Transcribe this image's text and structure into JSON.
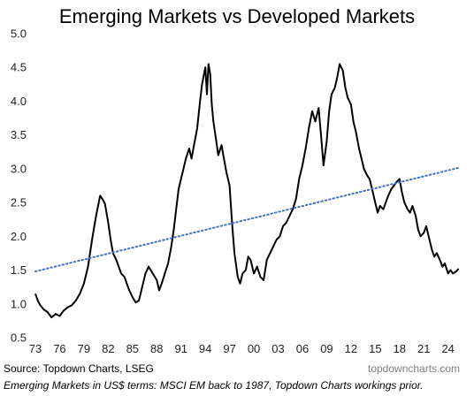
{
  "chart_data": {
    "type": "line",
    "title": "Emerging Markets vs Developed Markets",
    "xlabel": "",
    "ylabel": "",
    "ylim": [
      0.5,
      5.0
    ],
    "xlim": [
      1973,
      2026
    ],
    "yticks": [
      "0.5",
      "1.0",
      "1.5",
      "2.0",
      "2.5",
      "3.0",
      "3.5",
      "4.0",
      "4.5",
      "5.0"
    ],
    "xticks": [
      "73",
      "76",
      "79",
      "82",
      "85",
      "88",
      "91",
      "94",
      "97",
      "00",
      "03",
      "06",
      "09",
      "12",
      "15",
      "18",
      "21",
      "24"
    ],
    "grid": false,
    "legend": "none",
    "series": [
      {
        "color": "#000000",
        "style": "solid",
        "x": [
          1973.0,
          1973.3,
          1973.6,
          1974.0,
          1974.5,
          1975.0,
          1975.5,
          1976.0,
          1976.5,
          1977.0,
          1977.5,
          1978.0,
          1978.5,
          1979.0,
          1979.5,
          1980.0,
          1980.5,
          1981.0,
          1981.3,
          1981.6,
          1982.0,
          1982.3,
          1982.6,
          1983.0,
          1983.3,
          1983.6,
          1984.0,
          1984.3,
          1984.6,
          1985.0,
          1985.4,
          1985.8,
          1986.2,
          1986.6,
          1987.0,
          1987.5,
          1988.0,
          1988.3,
          1988.6,
          1989.0,
          1989.4,
          1989.8,
          1990.1,
          1990.4,
          1990.7,
          1991.0,
          1991.3,
          1991.6,
          1992.0,
          1992.3,
          1992.6,
          1993.0,
          1993.3,
          1993.6,
          1994.0,
          1994.2,
          1994.4,
          1994.6,
          1994.8,
          1995.0,
          1995.3,
          1995.6,
          1996.0,
          1996.3,
          1996.6,
          1997.0,
          1997.3,
          1997.6,
          1998.0,
          1998.3,
          1998.6,
          1999.0,
          1999.3,
          1999.6,
          2000.0,
          2000.4,
          2000.8,
          2001.2,
          2001.6,
          2002.0,
          2002.4,
          2002.8,
          2003.2,
          2003.6,
          2004.0,
          2004.4,
          2004.8,
          2005.2,
          2005.6,
          2006.0,
          2006.4,
          2006.8,
          2007.2,
          2007.6,
          2008.0,
          2008.3,
          2008.6,
          2009.0,
          2009.3,
          2009.6,
          2010.0,
          2010.3,
          2010.6,
          2011.0,
          2011.3,
          2011.6,
          2012.0,
          2012.3,
          2012.6,
          2013.0,
          2013.3,
          2013.6,
          2014.0,
          2014.3,
          2014.6,
          2015.0,
          2015.3,
          2015.6,
          2016.0,
          2016.3,
          2016.6,
          2017.0,
          2017.3,
          2017.6,
          2018.0,
          2018.3,
          2018.6,
          2019.0,
          2019.3,
          2019.6,
          2020.0,
          2020.3,
          2020.6,
          2021.0,
          2021.3,
          2021.6,
          2022.0,
          2022.3,
          2022.6,
          2023.0,
          2023.3,
          2023.6,
          2024.0,
          2024.3,
          2024.6,
          2025.0,
          2025.3
        ],
        "y": [
          1.15,
          1.05,
          0.98,
          0.92,
          0.88,
          0.8,
          0.85,
          0.82,
          0.9,
          0.95,
          0.98,
          1.05,
          1.15,
          1.3,
          1.55,
          1.95,
          2.3,
          2.6,
          2.55,
          2.48,
          2.2,
          1.95,
          1.75,
          1.65,
          1.55,
          1.45,
          1.4,
          1.3,
          1.2,
          1.1,
          1.02,
          1.05,
          1.25,
          1.45,
          1.55,
          1.45,
          1.35,
          1.2,
          1.3,
          1.45,
          1.6,
          1.85,
          2.1,
          2.4,
          2.7,
          2.85,
          3.0,
          3.15,
          3.3,
          3.15,
          3.35,
          3.6,
          3.95,
          4.25,
          4.5,
          4.1,
          4.55,
          4.4,
          3.95,
          3.7,
          3.45,
          3.2,
          3.35,
          3.15,
          2.95,
          2.75,
          2.2,
          1.75,
          1.4,
          1.3,
          1.45,
          1.5,
          1.7,
          1.65,
          1.45,
          1.55,
          1.4,
          1.35,
          1.65,
          1.75,
          1.85,
          1.95,
          2.0,
          2.15,
          2.2,
          2.3,
          2.4,
          2.55,
          2.85,
          3.05,
          3.3,
          3.6,
          3.85,
          3.7,
          3.9,
          3.5,
          3.05,
          3.4,
          3.85,
          4.1,
          4.2,
          4.35,
          4.55,
          4.45,
          4.2,
          4.05,
          3.95,
          3.7,
          3.55,
          3.3,
          3.15,
          3.0,
          2.9,
          2.85,
          2.7,
          2.5,
          2.35,
          2.45,
          2.4,
          2.5,
          2.6,
          2.7,
          2.75,
          2.8,
          2.85,
          2.65,
          2.5,
          2.4,
          2.35,
          2.45,
          2.3,
          2.1,
          2.0,
          2.05,
          2.15,
          2.0,
          1.8,
          1.7,
          1.75,
          1.65,
          1.55,
          1.6,
          1.45,
          1.5,
          1.45,
          1.48,
          1.52
        ]
      },
      {
        "color": "#4472c4",
        "style": "dotted",
        "x": [
          1973.0,
          2025.5
        ],
        "y": [
          1.48,
          3.02
        ]
      }
    ]
  },
  "source": "Source: Topdown Charts, LSEG",
  "watermark": "topdowncharts.com",
  "note": "Emerging Markets in US$ terms: MSCI EM back to 1987, Topdown Charts workings prior."
}
